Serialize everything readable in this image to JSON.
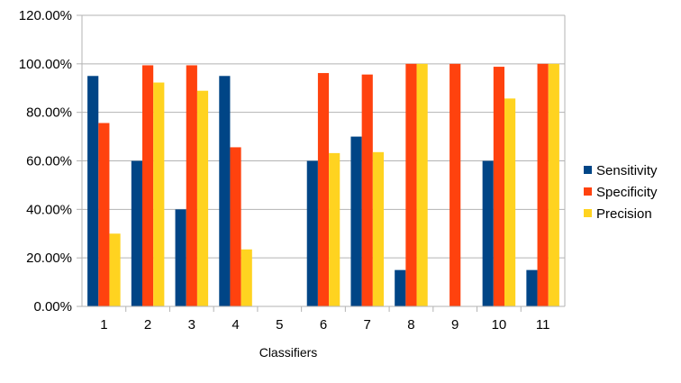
{
  "chart_data": {
    "type": "bar",
    "title": "",
    "xlabel": "Classifiers",
    "ylabel": "",
    "categories": [
      "1",
      "2",
      "3",
      "4",
      "5",
      "6",
      "7",
      "8",
      "9",
      "10",
      "11"
    ],
    "series": [
      {
        "name": "Sensitivity",
        "color": "#004586",
        "values": [
          95,
          60,
          40,
          95,
          0,
          60,
          70,
          15,
          0,
          60,
          15
        ]
      },
      {
        "name": "Specificity",
        "color": "#ff420e",
        "values": [
          75.6,
          99.4,
          99.4,
          65.6,
          0,
          96.2,
          95.6,
          100,
          100,
          98.8,
          100
        ]
      },
      {
        "name": "Precision",
        "color": "#ffd320",
        "values": [
          30,
          92.3,
          88.9,
          23.5,
          0,
          63.2,
          63.6,
          100,
          0,
          85.7,
          100
        ]
      }
    ],
    "y_ticks": [
      "0.00%",
      "20.00%",
      "40.00%",
      "60.00%",
      "80.00%",
      "100.00%",
      "120.00%"
    ],
    "ylim": [
      0,
      120
    ],
    "grid": true,
    "legend_position": "right"
  }
}
